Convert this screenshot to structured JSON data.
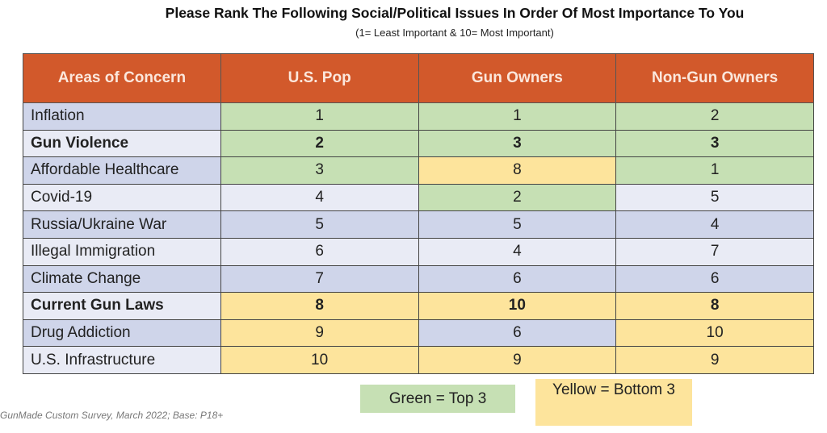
{
  "chart_data": {
    "type": "table",
    "title": "Please Rank The Following Social/Political Issues In Order Of Most Importance To You",
    "subtitle": "(1= Least Important & 10= Most Important)",
    "columns": [
      "Areas of Concern",
      "U.S. Pop",
      "Gun Owners",
      "Non-Gun Owners"
    ],
    "rows": [
      {
        "label": "Inflation",
        "bold": false,
        "values": [
          1,
          1,
          2
        ],
        "highlight": [
          "green",
          "green",
          "green"
        ]
      },
      {
        "label": "Gun Violence",
        "bold": true,
        "values": [
          2,
          3,
          3
        ],
        "highlight": [
          "green",
          "green",
          "green"
        ]
      },
      {
        "label": "Affordable Healthcare",
        "bold": false,
        "values": [
          3,
          8,
          1
        ],
        "highlight": [
          "green",
          "yellow",
          "green"
        ]
      },
      {
        "label": "Covid-19",
        "bold": false,
        "values": [
          4,
          2,
          5
        ],
        "highlight": [
          "none",
          "green",
          "none"
        ]
      },
      {
        "label": "Russia/Ukraine War",
        "bold": false,
        "values": [
          5,
          5,
          4
        ],
        "highlight": [
          "none",
          "none",
          "none"
        ]
      },
      {
        "label": "Illegal Immigration",
        "bold": false,
        "values": [
          6,
          4,
          7
        ],
        "highlight": [
          "none",
          "none",
          "none"
        ]
      },
      {
        "label": "Climate Change",
        "bold": false,
        "values": [
          7,
          6,
          6
        ],
        "highlight": [
          "none",
          "none",
          "none"
        ]
      },
      {
        "label": "Current Gun Laws",
        "bold": true,
        "values": [
          8,
          10,
          8
        ],
        "highlight": [
          "yellow",
          "yellow",
          "yellow"
        ]
      },
      {
        "label": "Drug Addiction",
        "bold": false,
        "values": [
          9,
          6,
          10
        ],
        "highlight": [
          "yellow",
          "none",
          "yellow"
        ]
      },
      {
        "label": "U.S. Infrastructure",
        "bold": false,
        "values": [
          10,
          9,
          9
        ],
        "highlight": [
          "yellow",
          "yellow",
          "yellow"
        ]
      }
    ],
    "legend": {
      "green": "Green = Top 3",
      "yellow": "Yellow = Bottom 3"
    },
    "colors": {
      "header": "#d2592b",
      "green": "#c6e0b4",
      "yellow": "#fde49c",
      "stripe_dark": "#cfd5ea",
      "stripe_light": "#e9ebf5"
    }
  },
  "footnote": "GunMade Custom Survey, March 2022; Base: P18+"
}
